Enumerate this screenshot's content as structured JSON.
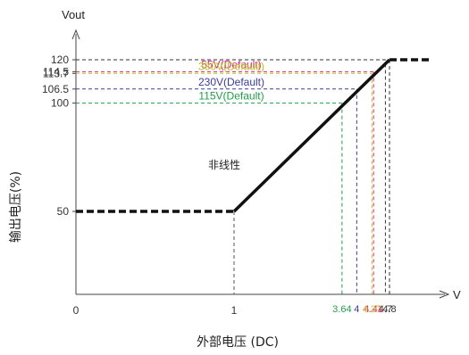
{
  "chart_data": {
    "type": "line",
    "y_axis_title": "Vout",
    "ylabel": "输出电压(%)",
    "x_axis_unit": "V",
    "xlabel": "外部电压 (DC)",
    "x_ticks_major": [
      "0",
      "1"
    ],
    "y_ticks": [
      "120",
      "114.5",
      "113.7",
      "106.5",
      "100",
      "50"
    ],
    "y_values": [
      120,
      114.5,
      113.7,
      106.5,
      100,
      50
    ],
    "series": [
      {
        "x": [
          0,
          1,
          4.8
        ],
        "y": [
          50,
          50,
          120
        ]
      }
    ],
    "dashed_extensions": [
      {
        "x": [
          0,
          1
        ],
        "y": [
          50,
          50
        ]
      },
      {
        "x": [
          4.8,
          5.2
        ],
        "y": [
          120,
          120
        ]
      }
    ],
    "annotations": [
      {
        "label": "55V(Default)",
        "y": 114.5,
        "x": 4.41,
        "x_label": "4.41",
        "color": "#e0207f"
      },
      {
        "label": "380V(Default)",
        "y": 113.7,
        "x": 4.37,
        "x_label": "4.37",
        "color": "#b8c020"
      },
      {
        "label": "230V(Default)",
        "y": 106.5,
        "x": 4,
        "x_label": "4",
        "color": "#3b3b9a"
      },
      {
        "label": "115V(Default)",
        "y": 100,
        "x": 3.64,
        "x_label": "3.64",
        "color": "#1f9e4a"
      }
    ],
    "extra_x_ticks": [
      {
        "x": 4.7,
        "label": "4.7",
        "color": "#333333"
      },
      {
        "x": 4.8,
        "label": "4.8",
        "color": "#333333"
      }
    ],
    "region_label": "非线性",
    "grid": false,
    "legend": "none"
  }
}
